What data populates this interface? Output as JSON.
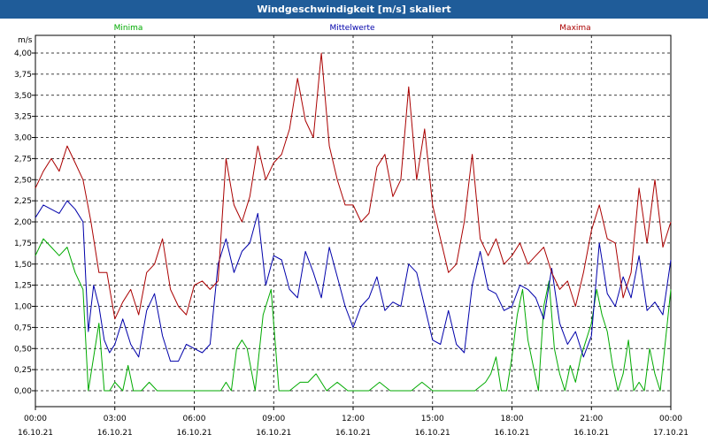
{
  "window": {
    "title": "Windgeschwindigkeit [m/s] skaliert"
  },
  "chart_data": {
    "type": "line",
    "title": "Windgeschwindigkeit [m/s] skaliert",
    "ylabel": "m/s",
    "ylim": [
      0,
      4
    ],
    "xlim": [
      "16.10.21 00:00",
      "17.10.21 00:00"
    ],
    "grid": true,
    "legend_position": "top",
    "y_ticks": [
      "0,00",
      "0,25",
      "0,50",
      "0,75",
      "1,00",
      "1,25",
      "1,50",
      "1,75",
      "2,00",
      "2,25",
      "2,50",
      "2,75",
      "3,00",
      "3,25",
      "3,50",
      "3,75",
      "4,00"
    ],
    "x_ticks": [
      {
        "time": "00:00",
        "date": "16.10.21"
      },
      {
        "time": "03:00",
        "date": "16.10.21"
      },
      {
        "time": "06:00",
        "date": "16.10.21"
      },
      {
        "time": "09:00",
        "date": "16.10.21"
      },
      {
        "time": "12:00",
        "date": "16.10.21"
      },
      {
        "time": "15:00",
        "date": "16.10.21"
      },
      {
        "time": "18:00",
        "date": "16.10.21"
      },
      {
        "time": "21:00",
        "date": "16.10.21"
      },
      {
        "time": "00:00",
        "date": "17.10.21"
      }
    ],
    "series": [
      {
        "name": "Minima",
        "color": "#00aa00",
        "x": [
          0,
          0.3,
          0.6,
          0.9,
          1.2,
          1.5,
          1.8,
          2.0,
          2.1,
          2.2,
          2.4,
          2.6,
          2.8,
          3.0,
          3.3,
          3.5,
          3.7,
          4.0,
          4.3,
          4.6,
          5.0,
          5.5,
          6.0,
          6.5,
          7.0,
          7.2,
          7.4,
          7.6,
          7.8,
          8.0,
          8.3,
          8.6,
          8.9,
          9.2,
          9.6,
          10.0,
          10.3,
          10.6,
          11.0,
          11.4,
          11.8,
          12.2,
          12.6,
          13.0,
          13.4,
          13.8,
          14.2,
          14.6,
          15.0,
          15.4,
          15.8,
          16.2,
          16.6,
          17.0,
          17.2,
          17.4,
          17.6,
          17.8,
          18.0,
          18.2,
          18.4,
          18.6,
          18.8,
          19.0,
          19.2,
          19.4,
          19.6,
          19.8,
          20.0,
          20.2,
          20.4,
          20.6,
          20.8,
          21.0,
          21.2,
          21.4,
          21.6,
          21.8,
          22.0,
          22.2,
          22.4,
          22.6,
          22.8,
          23.0,
          23.2,
          23.4,
          23.6,
          23.8,
          24.0
        ],
        "values": [
          1.6,
          1.8,
          1.7,
          1.6,
          1.7,
          1.4,
          1.2,
          0.0,
          0.2,
          0.4,
          0.8,
          0.0,
          0.0,
          0.1,
          0.0,
          0.3,
          0.0,
          0.0,
          0.1,
          0.0,
          0.0,
          0.0,
          0.0,
          0.0,
          0.0,
          0.1,
          0.0,
          0.5,
          0.6,
          0.5,
          0.0,
          0.9,
          1.2,
          0.0,
          0.0,
          0.1,
          0.1,
          0.2,
          0.0,
          0.1,
          0.0,
          0.0,
          0.0,
          0.1,
          0.0,
          0.0,
          0.0,
          0.1,
          0.0,
          0.0,
          0.0,
          0.0,
          0.0,
          0.1,
          0.2,
          0.4,
          0.0,
          0.0,
          0.4,
          0.9,
          1.2,
          0.6,
          0.3,
          0.0,
          1.0,
          1.3,
          0.5,
          0.2,
          0.0,
          0.3,
          0.1,
          0.4,
          0.6,
          0.8,
          1.2,
          0.9,
          0.7,
          0.3,
          0.0,
          0.2,
          0.6,
          0.0,
          0.1,
          0.0,
          0.5,
          0.2,
          0.0,
          0.6,
          1.2
        ]
      },
      {
        "name": "Mittelwerte",
        "color": "#0000aa",
        "x": [
          0,
          0.3,
          0.6,
          0.9,
          1.2,
          1.5,
          1.8,
          2.0,
          2.2,
          2.4,
          2.6,
          2.8,
          3.0,
          3.3,
          3.6,
          3.9,
          4.2,
          4.5,
          4.8,
          5.1,
          5.4,
          5.7,
          6.0,
          6.3,
          6.6,
          6.9,
          7.2,
          7.5,
          7.8,
          8.1,
          8.4,
          8.7,
          9.0,
          9.3,
          9.6,
          9.9,
          10.2,
          10.5,
          10.8,
          11.1,
          11.4,
          11.7,
          12.0,
          12.3,
          12.6,
          12.9,
          13.2,
          13.5,
          13.8,
          14.1,
          14.4,
          14.7,
          15.0,
          15.3,
          15.6,
          15.9,
          16.2,
          16.5,
          16.8,
          17.1,
          17.4,
          17.7,
          18.0,
          18.3,
          18.6,
          18.9,
          19.2,
          19.5,
          19.8,
          20.1,
          20.4,
          20.7,
          21.0,
          21.3,
          21.6,
          21.9,
          22.2,
          22.5,
          22.8,
          23.1,
          23.4,
          23.7,
          24.0
        ],
        "values": [
          2.05,
          2.2,
          2.15,
          2.1,
          2.25,
          2.15,
          2.0,
          0.7,
          1.25,
          1.0,
          0.6,
          0.45,
          0.55,
          0.85,
          0.55,
          0.4,
          0.95,
          1.15,
          0.65,
          0.35,
          0.35,
          0.55,
          0.5,
          0.45,
          0.55,
          1.5,
          1.8,
          1.4,
          1.65,
          1.75,
          2.1,
          1.25,
          1.6,
          1.55,
          1.2,
          1.1,
          1.65,
          1.4,
          1.1,
          1.7,
          1.35,
          1.0,
          0.75,
          1.0,
          1.1,
          1.35,
          0.95,
          1.05,
          1.0,
          1.5,
          1.4,
          1.0,
          0.6,
          0.55,
          0.95,
          0.55,
          0.45,
          1.25,
          1.65,
          1.2,
          1.15,
          0.95,
          1.0,
          1.25,
          1.2,
          1.1,
          0.85,
          1.45,
          0.8,
          0.55,
          0.7,
          0.4,
          0.65,
          1.75,
          1.15,
          1.0,
          1.35,
          1.1,
          1.6,
          0.95,
          1.05,
          0.9,
          1.55
        ]
      },
      {
        "name": "Maxima",
        "color": "#aa0000",
        "x": [
          0,
          0.3,
          0.6,
          0.9,
          1.2,
          1.5,
          1.8,
          2.1,
          2.4,
          2.7,
          3.0,
          3.3,
          3.6,
          3.9,
          4.2,
          4.5,
          4.8,
          5.1,
          5.4,
          5.7,
          6.0,
          6.3,
          6.6,
          6.9,
          7.2,
          7.5,
          7.8,
          8.1,
          8.4,
          8.7,
          9.0,
          9.3,
          9.6,
          9.9,
          10.2,
          10.5,
          10.8,
          11.1,
          11.4,
          11.7,
          12.0,
          12.3,
          12.6,
          12.9,
          13.2,
          13.5,
          13.8,
          14.1,
          14.4,
          14.7,
          15.0,
          15.3,
          15.6,
          15.9,
          16.2,
          16.5,
          16.8,
          17.1,
          17.4,
          17.7,
          18.0,
          18.3,
          18.6,
          18.9,
          19.2,
          19.5,
          19.8,
          20.1,
          20.4,
          20.7,
          21.0,
          21.3,
          21.6,
          21.9,
          22.2,
          22.5,
          22.8,
          23.1,
          23.4,
          23.7,
          24.0
        ],
        "values": [
          2.4,
          2.6,
          2.75,
          2.6,
          2.9,
          2.7,
          2.5,
          2.0,
          1.4,
          1.4,
          0.85,
          1.05,
          1.2,
          0.9,
          1.4,
          1.5,
          1.8,
          1.2,
          1.0,
          0.9,
          1.25,
          1.3,
          1.2,
          1.3,
          2.75,
          2.2,
          2.0,
          2.3,
          2.9,
          2.5,
          2.7,
          2.8,
          3.1,
          3.7,
          3.2,
          3.0,
          4.0,
          2.9,
          2.5,
          2.2,
          2.2,
          2.0,
          2.1,
          2.65,
          2.8,
          2.3,
          2.5,
          3.6,
          2.5,
          3.1,
          2.2,
          1.8,
          1.4,
          1.5,
          2.0,
          2.8,
          1.8,
          1.6,
          1.8,
          1.5,
          1.6,
          1.75,
          1.5,
          1.6,
          1.7,
          1.4,
          1.2,
          1.3,
          1.0,
          1.4,
          1.9,
          2.2,
          1.8,
          1.75,
          1.1,
          1.4,
          2.4,
          1.75,
          2.5,
          1.7,
          2.0
        ]
      }
    ]
  }
}
